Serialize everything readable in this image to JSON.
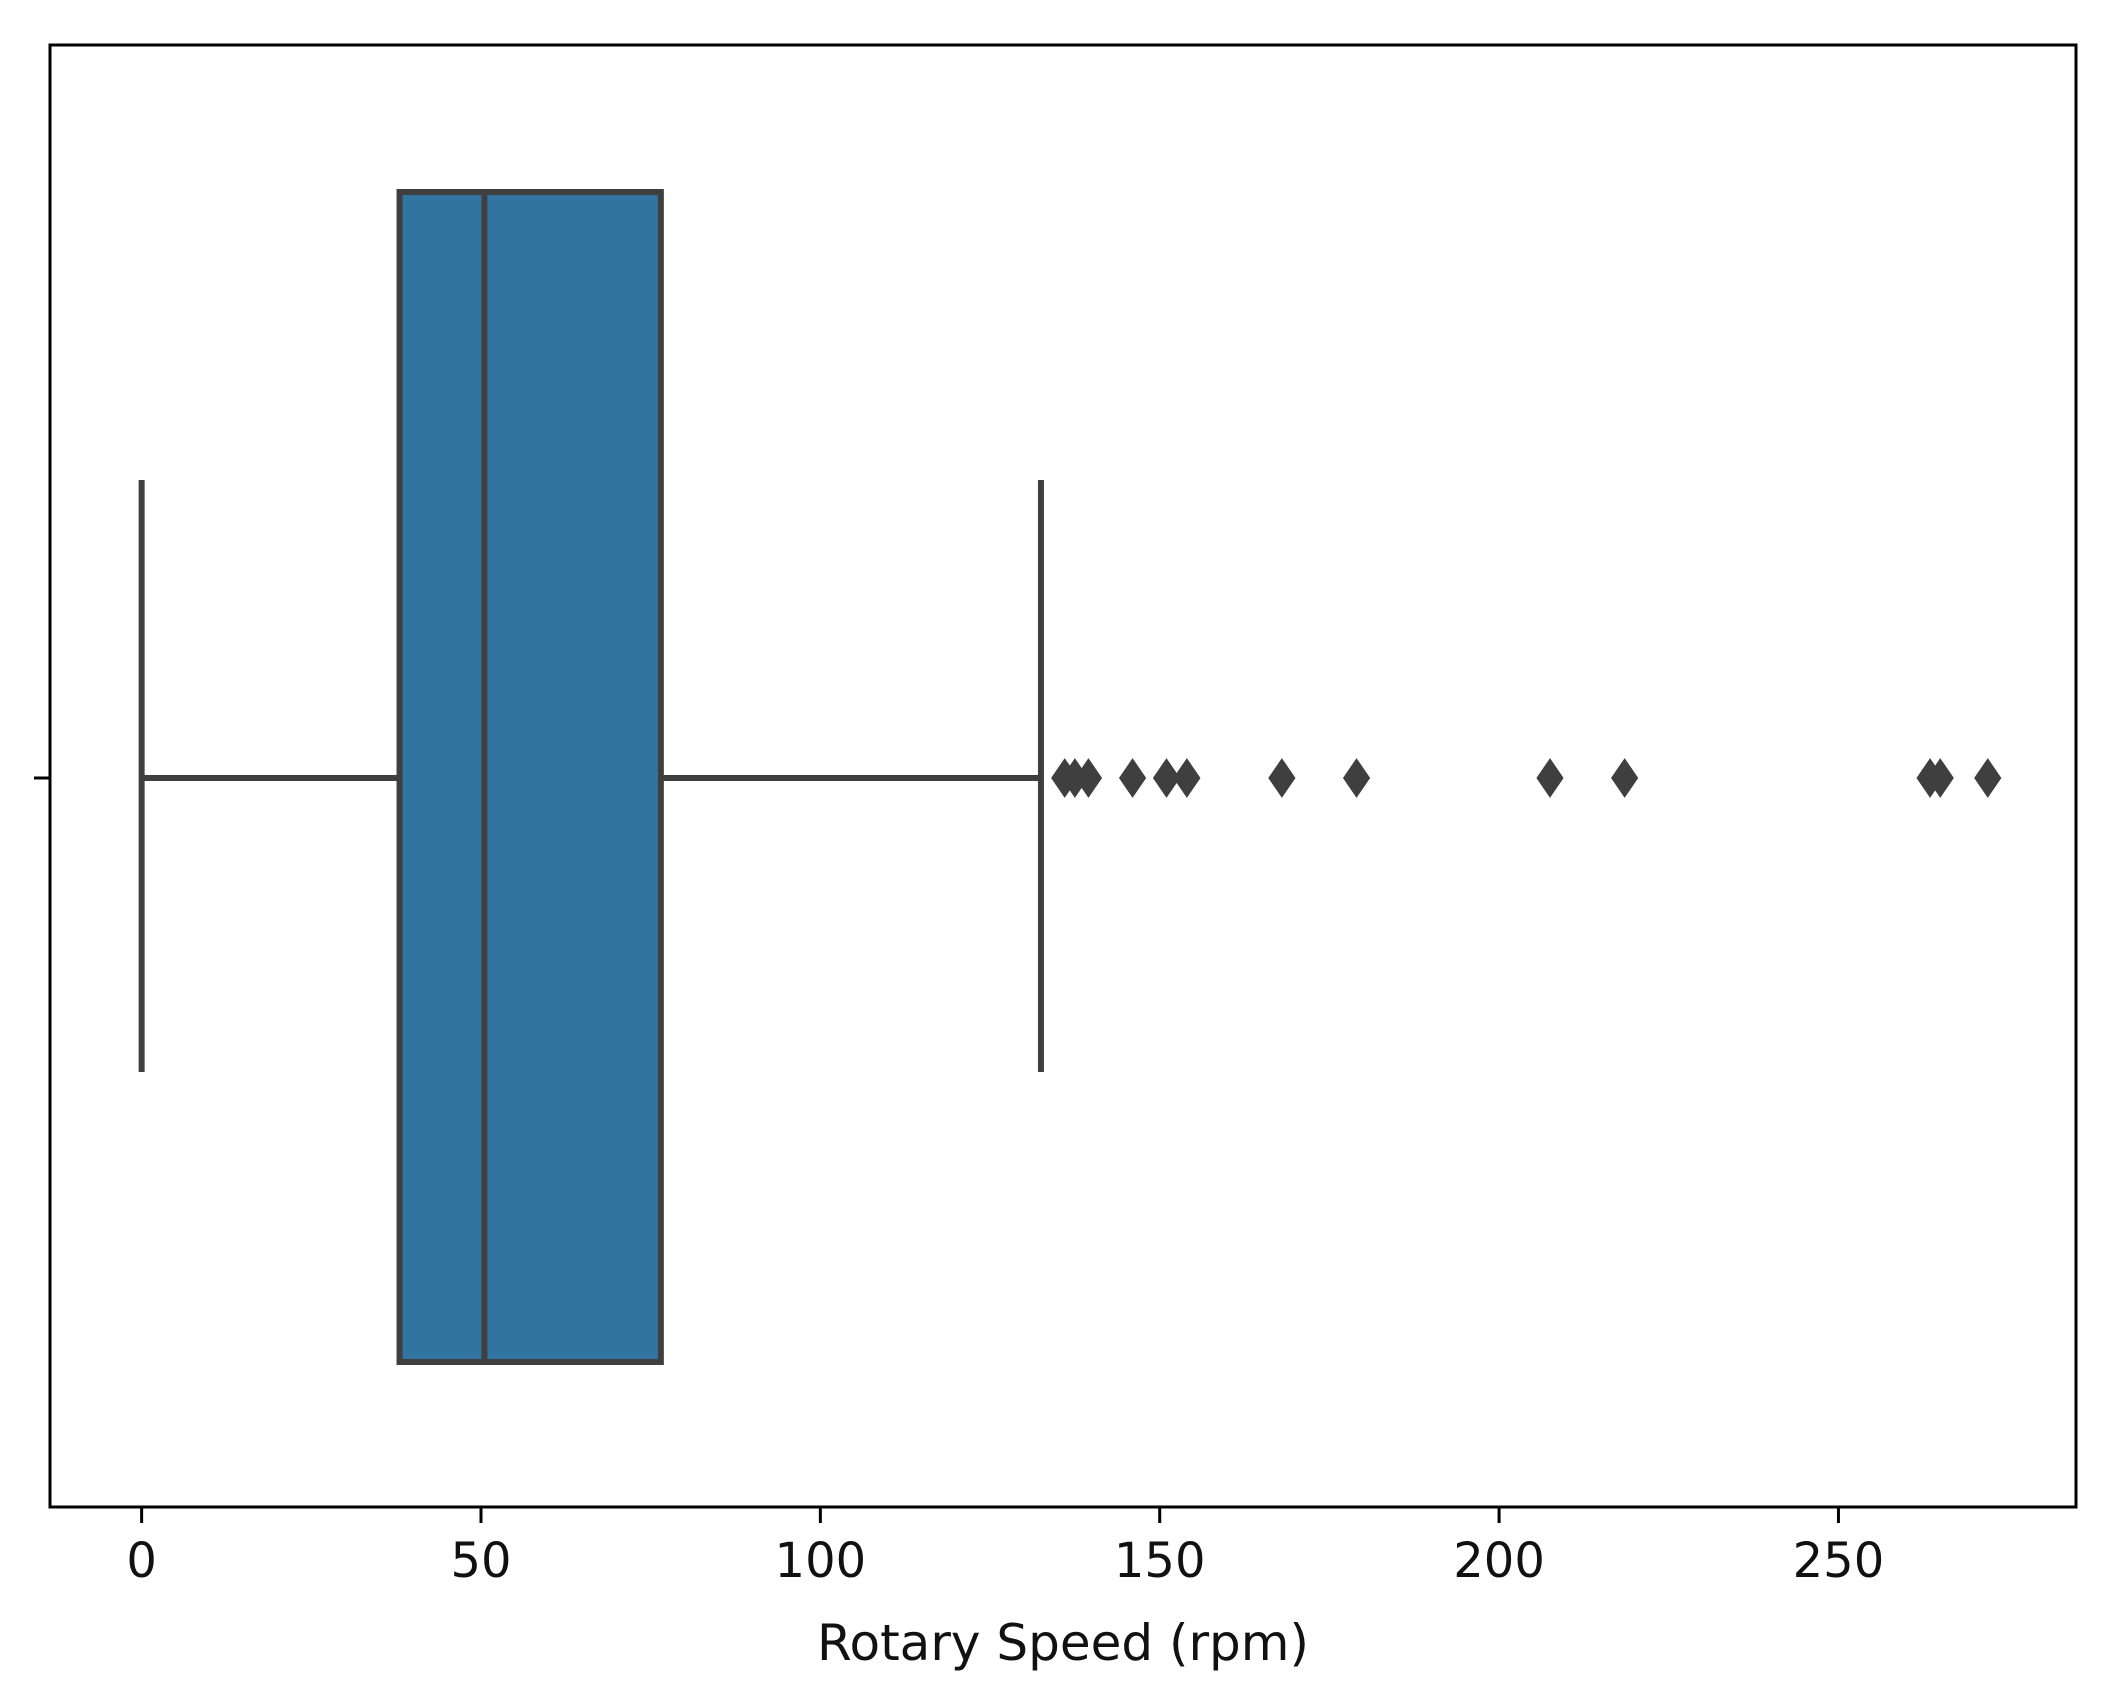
{
  "chart_data": {
    "type": "box",
    "orientation": "horizontal",
    "title": "",
    "xlabel": "Rotary Speed (rpm)",
    "ylabel": "",
    "xlim": [
      -13.5,
      285
    ],
    "xticks": [
      0,
      50,
      100,
      150,
      200,
      250
    ],
    "xtick_labels": [
      "0",
      "50",
      "100",
      "150",
      "200",
      "250"
    ],
    "grid": false,
    "legend": "none",
    "box": {
      "whisker_low": 0,
      "q1": 38,
      "median": 50.5,
      "q3": 76.5,
      "whisker_high": 132.5,
      "fill_color": "#3274a1",
      "line_color": "#3f3f3f"
    },
    "outliers": [
      136,
      137.5,
      139.5,
      146,
      151,
      154,
      168,
      179,
      207.5,
      218.5,
      263.5,
      265,
      272
    ]
  }
}
